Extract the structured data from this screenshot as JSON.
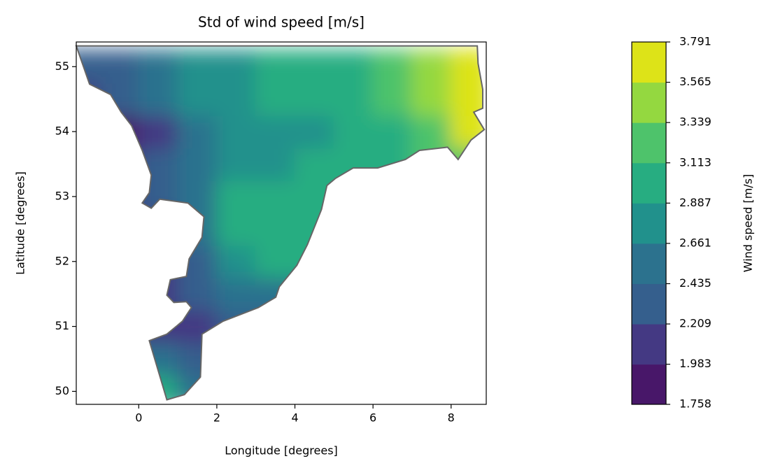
{
  "chart_data": {
    "type": "contour",
    "title": "Std of wind speed [m/s]",
    "xlabel": "Longitude [degrees]",
    "ylabel": "Latitude [degrees]",
    "xlim": [
      -1.6,
      8.9
    ],
    "ylim": [
      49.8,
      55.38
    ],
    "xticks": [
      0,
      2,
      4,
      6,
      8
    ],
    "yticks": [
      50,
      51,
      52,
      53,
      54,
      55
    ],
    "colorbar_label": "Wind speed [m/s]",
    "levels": [
      1.758,
      1.983,
      2.209,
      2.435,
      2.661,
      2.887,
      3.113,
      3.339,
      3.565,
      3.791
    ],
    "level_colors": [
      "#481769",
      "#443983",
      "#355f8d",
      "#2c728e",
      "#21918c",
      "#27ad81",
      "#4ec36b",
      "#94d840",
      "#dde318"
    ],
    "field": {
      "lon": [
        -1.5,
        -0.5,
        0.5,
        1.5,
        2.5,
        3.5,
        4.5,
        5.5,
        6.5,
        7.5,
        8.5
      ],
      "lat": [
        50,
        50.5,
        51,
        51.5,
        52,
        52.5,
        53,
        53.5,
        54,
        54.5,
        55
      ],
      "values": [
        [
          2.8,
          2.8,
          2.9,
          2.6,
          2.4,
          2.4,
          2.4,
          2.4,
          2.4,
          2.4,
          2.4
        ],
        [
          2.6,
          2.6,
          2.6,
          2.4,
          2.3,
          2.3,
          2.3,
          2.3,
          2.3,
          2.3,
          2.3
        ],
        [
          2.2,
          2.2,
          2.2,
          2.2,
          2.3,
          2.4,
          2.4,
          2.4,
          2.4,
          2.4,
          2.4
        ],
        [
          2.1,
          2.1,
          2.2,
          2.3,
          2.5,
          2.6,
          2.6,
          2.6,
          2.6,
          2.6,
          2.6
        ],
        [
          2.0,
          2.1,
          2.2,
          2.3,
          2.7,
          2.9,
          2.9,
          2.8,
          2.8,
          2.8,
          2.8
        ],
        [
          2.0,
          2.1,
          2.2,
          2.5,
          2.9,
          3.1,
          3.1,
          2.9,
          2.9,
          2.9,
          2.9
        ],
        [
          2.0,
          2.2,
          2.3,
          2.6,
          2.9,
          3.0,
          3.0,
          2.9,
          2.9,
          3.0,
          3.0
        ],
        [
          2.0,
          2.1,
          2.3,
          2.6,
          2.7,
          2.8,
          2.9,
          3.0,
          3.0,
          3.2,
          3.3
        ],
        [
          2.0,
          1.9,
          2.2,
          2.5,
          2.7,
          2.8,
          2.8,
          2.9,
          3.1,
          3.3,
          3.6
        ],
        [
          2.2,
          2.3,
          2.6,
          2.7,
          2.8,
          2.9,
          3.0,
          3.1,
          3.2,
          3.5,
          3.7
        ],
        [
          2.3,
          2.4,
          2.5,
          2.7,
          2.8,
          2.9,
          3.0,
          3.1,
          3.3,
          3.5,
          3.7
        ]
      ]
    },
    "boundary": {
      "lon": [
        -1.6,
        8.67,
        8.69,
        8.81,
        8.81,
        8.58,
        8.85,
        8.51,
        8.18,
        7.91,
        7.19,
        6.83,
        6.12,
        5.49,
        5.04,
        4.82,
        4.68,
        4.32,
        4.05,
        3.6,
        3.51,
        3.06,
        2.16,
        1.62,
        1.58,
        1.17,
        0.72,
        0.27,
        0.72,
        1.12,
        1.35,
        1.22,
        0.9,
        0.72,
        0.81,
        1.22,
        1.29,
        1.62,
        1.67,
        1.26,
        0.54,
        0.32,
        0.09,
        0.27,
        0.32,
        0.09,
        -0.18,
        -0.45,
        -0.72,
        -1.26,
        -1.6
      ],
      "lat": [
        55.32,
        55.32,
        55.05,
        54.65,
        54.36,
        54.3,
        54.03,
        53.87,
        53.57,
        53.76,
        53.71,
        53.57,
        53.44,
        53.44,
        53.28,
        53.17,
        52.8,
        52.26,
        51.94,
        51.61,
        51.45,
        51.29,
        51.08,
        50.88,
        50.22,
        49.95,
        49.87,
        50.78,
        50.88,
        51.08,
        51.29,
        51.38,
        51.37,
        51.48,
        51.72,
        51.77,
        52.04,
        52.37,
        52.69,
        52.9,
        52.96,
        52.82,
        52.9,
        53.06,
        53.33,
        53.71,
        54.09,
        54.3,
        54.57,
        54.73,
        55.32
      ]
    }
  }
}
